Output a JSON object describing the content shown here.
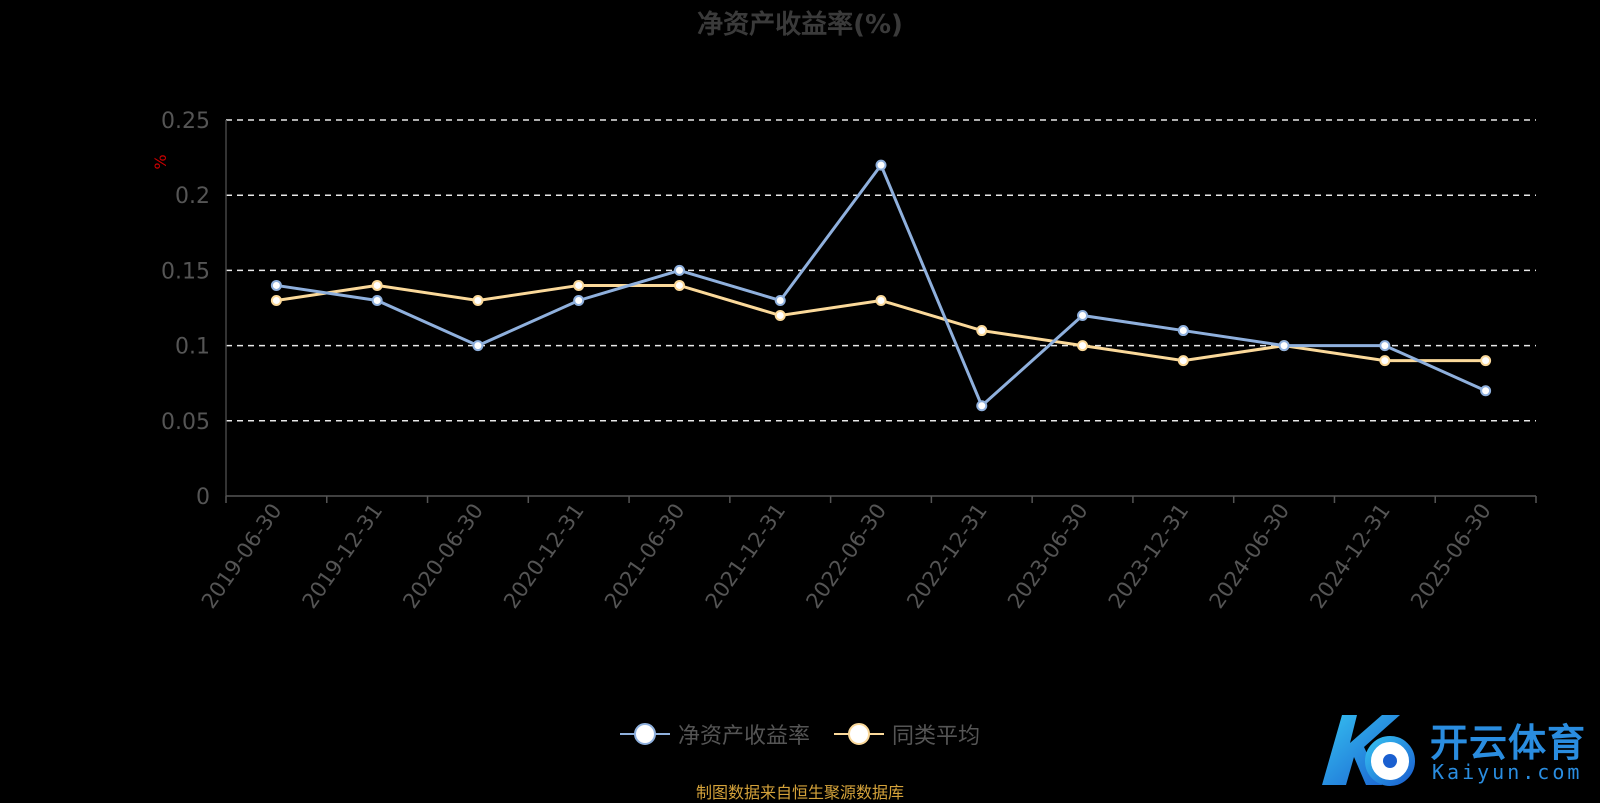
{
  "chart_data": {
    "type": "line",
    "title": "净资产收益率(%)",
    "ylabel": "%",
    "ylim": [
      0,
      0.25
    ],
    "yticks": [
      0,
      0.05,
      0.1,
      0.15,
      0.2,
      0.25
    ],
    "grid": true,
    "legend_position": "bottom-center",
    "categories": [
      "2019-06-30",
      "2019-12-31",
      "2020-06-30",
      "2020-12-31",
      "2021-06-30",
      "2021-12-31",
      "2022-06-30",
      "2022-12-31",
      "2023-06-30",
      "2023-12-31",
      "2024-06-30",
      "2024-12-31",
      "2025-06-30"
    ],
    "series": [
      {
        "name": "净资产收益率",
        "color": "#8fb0dd",
        "values": [
          0.14,
          0.13,
          0.1,
          0.13,
          0.15,
          0.13,
          0.22,
          0.06,
          0.12,
          0.11,
          0.1,
          0.1,
          0.07
        ]
      },
      {
        "name": "同类平均",
        "color": "#fbd99a",
        "values": [
          0.13,
          0.14,
          0.13,
          0.14,
          0.14,
          0.12,
          0.13,
          0.11,
          0.1,
          0.09,
          0.1,
          0.09,
          0.09
        ]
      }
    ]
  },
  "source_note": "制图数据来自恒生聚源数据库",
  "watermark": {
    "text": "开云体育",
    "sub": "Kaiyun.com"
  }
}
